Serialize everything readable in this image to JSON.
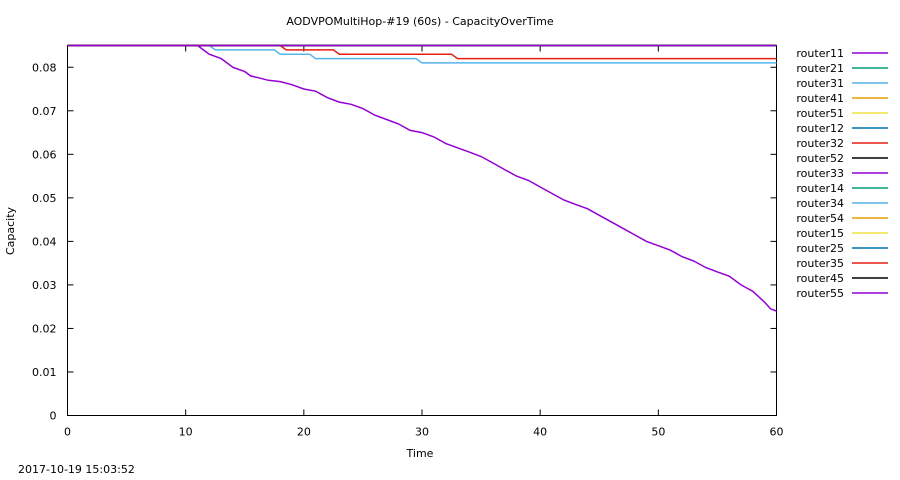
{
  "chart_data": {
    "type": "line",
    "title": "AODVPOMultiHop-#19 (60s) - CapacityOverTime",
    "xlabel": "Time",
    "ylabel": "Capacity",
    "xlim": [
      0,
      60
    ],
    "ylim": [
      0,
      0.085
    ],
    "xticks": [
      "0",
      "10",
      "20",
      "30",
      "40",
      "50",
      "60"
    ],
    "yticks": [
      "0",
      "0.01",
      "0.02",
      "0.03",
      "0.04",
      "0.05",
      "0.06",
      "0.07",
      "0.08"
    ],
    "grid": false,
    "legend_position": "right",
    "series": [
      {
        "name": "router11",
        "color": "#9400d3",
        "x": [
          0,
          60
        ],
        "y": [
          0.085,
          0.085
        ]
      },
      {
        "name": "router21",
        "color": "#009e73",
        "x": [
          0,
          60
        ],
        "y": [
          0.085,
          0.085
        ]
      },
      {
        "name": "router31",
        "color": "#56b4e9",
        "x": [
          0,
          60
        ],
        "y": [
          0.085,
          0.085
        ]
      },
      {
        "name": "router41",
        "color": "#e69f00",
        "x": [
          0,
          60
        ],
        "y": [
          0.085,
          0.085
        ]
      },
      {
        "name": "router51",
        "color": "#f0e442",
        "x": [
          0,
          60
        ],
        "y": [
          0.085,
          0.085
        ]
      },
      {
        "name": "router12",
        "color": "#0072b2",
        "x": [
          0,
          60
        ],
        "y": [
          0.085,
          0.085
        ]
      },
      {
        "name": "router32",
        "color": "#e51e10",
        "x": [
          0,
          60
        ],
        "y": [
          0.085,
          0.085
        ]
      },
      {
        "name": "router52",
        "color": "#000000",
        "x": [
          0,
          60
        ],
        "y": [
          0.085,
          0.085
        ]
      },
      {
        "name": "router33",
        "color": "#9400d3",
        "x": [
          0,
          11,
          11.5,
          12,
          13,
          13.5,
          14,
          15,
          15.5,
          16,
          17,
          18,
          19,
          20,
          21,
          22,
          23,
          24,
          25,
          26,
          27,
          28,
          29,
          30,
          31,
          32,
          33,
          34,
          35,
          36,
          37,
          38,
          39,
          40,
          41,
          42,
          43,
          44,
          45,
          46,
          47,
          48,
          49,
          50,
          51,
          52,
          53,
          54,
          55,
          56,
          57,
          58,
          59,
          59.5,
          60
        ],
        "y": [
          0.085,
          0.085,
          0.084,
          0.083,
          0.082,
          0.081,
          0.08,
          0.079,
          0.078,
          0.0777,
          0.077,
          0.0767,
          0.076,
          0.075,
          0.0745,
          0.073,
          0.072,
          0.0715,
          0.0705,
          0.069,
          0.068,
          0.067,
          0.0655,
          0.065,
          0.064,
          0.0625,
          0.0615,
          0.0605,
          0.0595,
          0.058,
          0.0565,
          0.055,
          0.054,
          0.0525,
          0.051,
          0.0495,
          0.0485,
          0.0475,
          0.046,
          0.0445,
          0.043,
          0.0415,
          0.04,
          0.039,
          0.038,
          0.0365,
          0.0355,
          0.034,
          0.033,
          0.032,
          0.03,
          0.0285,
          0.026,
          0.0245,
          0.024
        ]
      },
      {
        "name": "router14",
        "color": "#009e73",
        "x": [
          0,
          60
        ],
        "y": [
          0.085,
          0.085
        ]
      },
      {
        "name": "router34",
        "color": "#56b4e9",
        "x": [
          0,
          12,
          12.5,
          17.5,
          18,
          20.5,
          21,
          29.5,
          30,
          60
        ],
        "y": [
          0.085,
          0.085,
          0.084,
          0.084,
          0.083,
          0.083,
          0.082,
          0.082,
          0.081,
          0.081
        ]
      },
      {
        "name": "router54",
        "color": "#e69f00",
        "x": [
          0,
          60
        ],
        "y": [
          0.085,
          0.085
        ]
      },
      {
        "name": "router15",
        "color": "#f0e442",
        "x": [
          0,
          60
        ],
        "y": [
          0.085,
          0.085
        ]
      },
      {
        "name": "router25",
        "color": "#0072b2",
        "x": [
          0,
          60
        ],
        "y": [
          0.085,
          0.085
        ]
      },
      {
        "name": "router35",
        "color": "#e51e10",
        "x": [
          0,
          18,
          18.5,
          22.5,
          23,
          32.5,
          33,
          60
        ],
        "y": [
          0.085,
          0.085,
          0.084,
          0.084,
          0.083,
          0.083,
          0.082,
          0.082
        ]
      },
      {
        "name": "router45",
        "color": "#000000",
        "x": [
          0,
          60
        ],
        "y": [
          0.085,
          0.085
        ]
      },
      {
        "name": "router55",
        "color": "#9400d3",
        "x": [
          0,
          60
        ],
        "y": [
          0.085,
          0.085
        ]
      }
    ]
  },
  "footer_timestamp": "2017-10-19 15:03:52"
}
